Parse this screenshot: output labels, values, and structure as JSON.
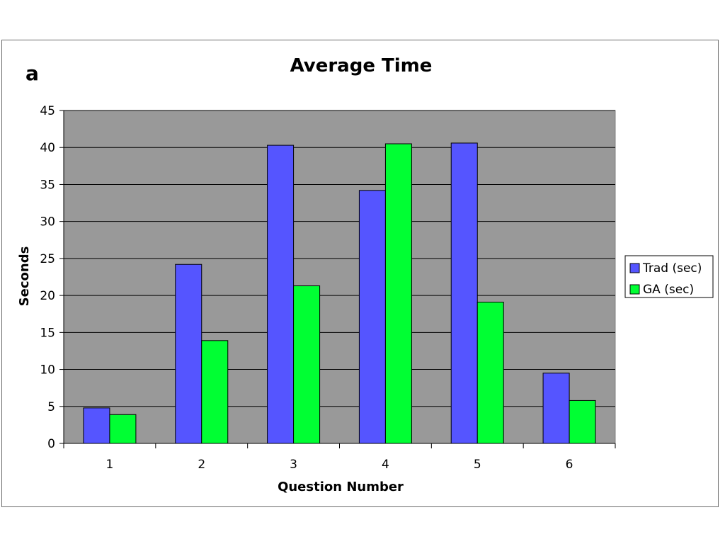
{
  "panel_label": "a",
  "chart_data": {
    "type": "bar",
    "title": "Average Time",
    "xlabel": "Question Number",
    "ylabel": "Seconds",
    "categories": [
      "1",
      "2",
      "3",
      "4",
      "5",
      "6"
    ],
    "series": [
      {
        "name": "Trad (sec)",
        "color": "#5555ff",
        "values": [
          4.8,
          24.2,
          40.3,
          34.2,
          40.6,
          9.5
        ]
      },
      {
        "name": "GA (sec)",
        "color": "#00ff33",
        "values": [
          3.9,
          13.9,
          21.3,
          40.5,
          19.1,
          5.8
        ]
      }
    ],
    "ylim": [
      0,
      45
    ],
    "yticks": [
      "0",
      "5",
      "10",
      "15",
      "20",
      "25",
      "30",
      "35",
      "40",
      "45"
    ],
    "grid": true,
    "plot_background": "#999999",
    "legend_position": "right"
  }
}
